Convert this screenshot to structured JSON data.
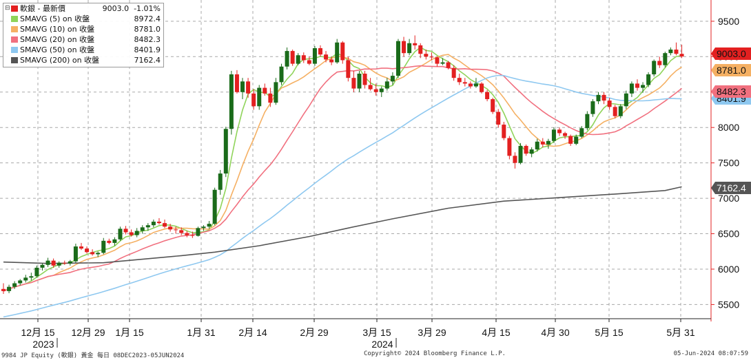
{
  "chart_data": {
    "type": "candlestick",
    "x_axis": {
      "tick_labels": [
        "12月 15",
        "12月 29",
        "1月 15",
        "1月 31",
        "2月 14",
        "2月 29",
        "3月 15",
        "3月 29",
        "4月 15",
        "4月 30",
        "5月 15",
        "5月 31"
      ],
      "year_labels": [
        {
          "label": "2023",
          "after_tick": "12月 15"
        },
        {
          "label": "2024",
          "after_tick": "3月 15"
        }
      ]
    },
    "y_axis": {
      "ylim": [
        5300,
        9800
      ],
      "ticks": [
        5500,
        6000,
        6500,
        7000,
        7500,
        8000,
        8500,
        9000,
        9500
      ],
      "side": "right"
    },
    "grid": true,
    "legend_position": "top-left",
    "value_tags": [
      {
        "value": 9003.0,
        "label": "9003.0",
        "color": "#e32020"
      },
      {
        "value": 8781.0,
        "label": "8781.0",
        "color": "#f5b063"
      },
      {
        "value": 8482.3,
        "label": "8482.3",
        "color": "#f1707f"
      },
      {
        "value": 8401.9,
        "label": "8401.9",
        "color": "#8ec8f0"
      },
      {
        "value": 7162.4,
        "label": "7162.4",
        "color": "#555555"
      }
    ],
    "candles": [
      [
        5720,
        5800,
        5650,
        5690
      ],
      [
        5690,
        5780,
        5660,
        5750
      ],
      [
        5750,
        5830,
        5720,
        5800
      ],
      [
        5800,
        5860,
        5770,
        5840
      ],
      [
        5840,
        5920,
        5810,
        5880
      ],
      [
        5880,
        5950,
        5840,
        5900
      ],
      [
        5900,
        6050,
        5880,
        6020
      ],
      [
        6020,
        6080,
        5980,
        6060
      ],
      [
        6060,
        6160,
        6030,
        6120
      ],
      [
        6120,
        6150,
        6020,
        6050
      ],
      [
        6050,
        6110,
        6020,
        6090
      ],
      [
        6090,
        6120,
        6060,
        6080
      ],
      [
        6080,
        6130,
        6050,
        6110
      ],
      [
        6110,
        6360,
        6090,
        6320
      ],
      [
        6320,
        6370,
        6270,
        6290
      ],
      [
        6290,
        6320,
        6220,
        6240
      ],
      [
        6240,
        6280,
        6190,
        6210
      ],
      [
        6210,
        6250,
        6170,
        6230
      ],
      [
        6230,
        6440,
        6210,
        6400
      ],
      [
        6400,
        6430,
        6350,
        6370
      ],
      [
        6370,
        6450,
        6330,
        6420
      ],
      [
        6420,
        6600,
        6400,
        6570
      ],
      [
        6570,
        6610,
        6490,
        6520
      ],
      [
        6520,
        6560,
        6460,
        6480
      ],
      [
        6480,
        6580,
        6450,
        6540
      ],
      [
        6540,
        6620,
        6500,
        6590
      ],
      [
        6590,
        6650,
        6540,
        6620
      ],
      [
        6620,
        6700,
        6590,
        6670
      ],
      [
        6670,
        6720,
        6630,
        6650
      ],
      [
        6650,
        6700,
        6580,
        6600
      ],
      [
        6600,
        6640,
        6530,
        6560
      ],
      [
        6560,
        6600,
        6500,
        6550
      ],
      [
        6550,
        6590,
        6480,
        6510
      ],
      [
        6510,
        6540,
        6450,
        6480
      ],
      [
        6480,
        6530,
        6440,
        6470
      ],
      [
        6470,
        6600,
        6460,
        6580
      ],
      [
        6580,
        6620,
        6540,
        6600
      ],
      [
        6600,
        6680,
        6570,
        6640
      ],
      [
        6640,
        7150,
        6620,
        7120
      ],
      [
        7120,
        7400,
        7050,
        7350
      ],
      [
        7350,
        8010,
        7300,
        7980
      ],
      [
        7980,
        8800,
        7900,
        8750
      ],
      [
        8750,
        8810,
        8480,
        8500
      ],
      [
        8500,
        8700,
        8400,
        8650
      ],
      [
        8650,
        8700,
        8420,
        8480
      ],
      [
        8480,
        8540,
        8250,
        8300
      ],
      [
        8300,
        8600,
        8250,
        8560
      ],
      [
        8560,
        8620,
        8450,
        8480
      ],
      [
        8480,
        8560,
        8290,
        8350
      ],
      [
        8350,
        8700,
        8320,
        8640
      ],
      [
        8640,
        8900,
        8600,
        8860
      ],
      [
        8860,
        9130,
        8820,
        9080
      ],
      [
        9080,
        9100,
        8870,
        8900
      ],
      [
        8900,
        9050,
        8880,
        9020
      ],
      [
        9020,
        9060,
        8910,
        8950
      ],
      [
        8950,
        9000,
        8880,
        8900
      ],
      [
        8900,
        9150,
        8870,
        9120
      ],
      [
        9120,
        9160,
        9000,
        9030
      ],
      [
        9030,
        9080,
        8920,
        8960
      ],
      [
        8960,
        9000,
        8880,
        8920
      ],
      [
        8920,
        9250,
        8900,
        9200
      ],
      [
        9200,
        9220,
        8900,
        8950
      ],
      [
        8950,
        9000,
        8650,
        8700
      ],
      [
        8700,
        8800,
        8500,
        8550
      ],
      [
        8550,
        8800,
        8500,
        8760
      ],
      [
        8760,
        8800,
        8550,
        8600
      ],
      [
        8600,
        8700,
        8520,
        8540
      ],
      [
        8540,
        8620,
        8450,
        8500
      ],
      [
        8500,
        8580,
        8430,
        8550
      ],
      [
        8550,
        8700,
        8520,
        8650
      ],
      [
        8650,
        8780,
        8600,
        8730
      ],
      [
        8730,
        9250,
        8700,
        9220
      ],
      [
        9220,
        9280,
        9000,
        9050
      ],
      [
        9050,
        9250,
        9020,
        9190
      ],
      [
        9190,
        9300,
        9100,
        9160
      ],
      [
        9160,
        9190,
        8980,
        9040
      ],
      [
        9040,
        9100,
        8960,
        9000
      ],
      [
        9000,
        9060,
        8950,
        8990
      ],
      [
        8990,
        9000,
        8860,
        8900
      ],
      [
        8900,
        8980,
        8880,
        8920
      ],
      [
        8920,
        8940,
        8820,
        8840
      ],
      [
        8840,
        8880,
        8660,
        8700
      ],
      [
        8700,
        8760,
        8600,
        8640
      ],
      [
        8640,
        8700,
        8580,
        8620
      ],
      [
        8620,
        8650,
        8550,
        8580
      ],
      [
        8580,
        8700,
        8560,
        8620
      ],
      [
        8620,
        8640,
        8480,
        8500
      ],
      [
        8500,
        8530,
        8370,
        8400
      ],
      [
        8400,
        8420,
        8190,
        8220
      ],
      [
        8220,
        8260,
        8000,
        8040
      ],
      [
        8040,
        8080,
        7820,
        7850
      ],
      [
        7850,
        7880,
        7550,
        7600
      ],
      [
        7600,
        7650,
        7420,
        7500
      ],
      [
        7500,
        7780,
        7480,
        7740
      ],
      [
        7740,
        7760,
        7600,
        7630
      ],
      [
        7630,
        7720,
        7580,
        7690
      ],
      [
        7690,
        7840,
        7660,
        7800
      ],
      [
        7800,
        7850,
        7720,
        7760
      ],
      [
        7760,
        7840,
        7700,
        7810
      ],
      [
        7810,
        8000,
        7780,
        7970
      ],
      [
        7970,
        8000,
        7880,
        7920
      ],
      [
        7920,
        7940,
        7840,
        7880
      ],
      [
        7880,
        7900,
        7740,
        7770
      ],
      [
        7770,
        7900,
        7750,
        7870
      ],
      [
        7870,
        8020,
        7850,
        7990
      ],
      [
        7990,
        8230,
        7960,
        8190
      ],
      [
        8190,
        8400,
        8150,
        8370
      ],
      [
        8370,
        8500,
        8330,
        8460
      ],
      [
        8460,
        8500,
        8330,
        8380
      ],
      [
        8380,
        8420,
        8250,
        8290
      ],
      [
        8290,
        8320,
        8130,
        8160
      ],
      [
        8160,
        8330,
        8130,
        8300
      ],
      [
        8300,
        8520,
        8260,
        8480
      ],
      [
        8480,
        8650,
        8430,
        8620
      ],
      [
        8620,
        8680,
        8520,
        8560
      ],
      [
        8560,
        8640,
        8490,
        8600
      ],
      [
        8600,
        8780,
        8570,
        8750
      ],
      [
        8750,
        8960,
        8720,
        8940
      ],
      [
        8940,
        9000,
        8840,
        8880
      ],
      [
        8880,
        9070,
        8850,
        9050
      ],
      [
        9050,
        9130,
        9020,
        9100
      ],
      [
        9100,
        9200,
        9020,
        9040
      ],
      [
        9040,
        9170,
        8980,
        9003
      ]
    ],
    "series": [
      {
        "name": "SMAVG (5)",
        "color": "#8fd45a",
        "last": 8972.4
      },
      {
        "name": "SMAVG (10)",
        "color": "#f5b063",
        "last": 8781.0
      },
      {
        "name": "SMAVG (20)",
        "color": "#f1707f",
        "last": 8482.3
      },
      {
        "name": "SMAVG (50)",
        "color": "#8ec8f0",
        "last": 8401.9
      },
      {
        "name": "SMAVG (200)",
        "color": "#555555",
        "last": 7162.4,
        "points": [
          [
            0,
            6100
          ],
          [
            8,
            6080
          ],
          [
            18,
            6090
          ],
          [
            25,
            6140
          ],
          [
            32,
            6190
          ],
          [
            38,
            6240
          ],
          [
            46,
            6330
          ],
          [
            55,
            6460
          ],
          [
            62,
            6580
          ],
          [
            70,
            6710
          ],
          [
            80,
            6860
          ],
          [
            90,
            6960
          ],
          [
            100,
            7010
          ],
          [
            110,
            7060
          ],
          [
            119,
            7110
          ],
          [
            122,
            7162.4
          ]
        ]
      }
    ],
    "up_color": "#1a6b1a",
    "down_color": "#e32020"
  },
  "legend": {
    "header": {
      "name": "軟銀 - 最新價",
      "value": "9003.0",
      "change": "-1.01%",
      "color": "#e32020"
    },
    "rows": [
      {
        "name": "SMAVG (5)  on 收盤",
        "value": "8972.4",
        "color": "#8fd45a"
      },
      {
        "name": "SMAVG (10)  on 收盤",
        "value": "8781.0",
        "color": "#f5b063"
      },
      {
        "name": "SMAVG (20)  on 收盤",
        "value": "8482.3",
        "color": "#f1707f"
      },
      {
        "name": "SMAVG (50)  on 收盤",
        "value": "8401.9",
        "color": "#8ec8f0"
      },
      {
        "name": "SMAVG (200) on 收盤",
        "value": "7162.4",
        "color": "#555555"
      }
    ]
  },
  "footer": {
    "left": "9984 JP Equity (軟銀) 黃金  每日 08DEC2023-05JUN2024",
    "center": "Copyright© 2024 Bloomberg Finance L.P.",
    "right": "05-Jun-2024 08:07:59"
  }
}
